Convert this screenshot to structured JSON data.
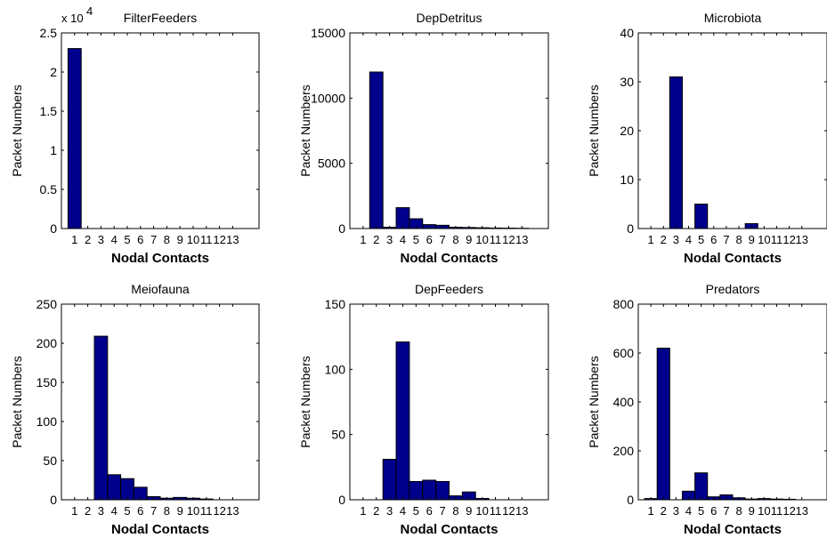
{
  "chart_data": [
    {
      "type": "bar",
      "title": "FilterFeeders",
      "xlabel": "Nodal Contacts",
      "ylabel": "Packet Numbers",
      "categories": [
        "1",
        "2",
        "3",
        "4",
        "5",
        "6",
        "7",
        "8",
        "9",
        "10",
        "11",
        "12",
        "13"
      ],
      "values": [
        23000,
        0,
        0,
        0,
        0,
        0,
        0,
        0,
        0,
        0,
        0,
        0,
        0
      ],
      "ylim": [
        0,
        25000
      ],
      "yticks": [
        0,
        5000,
        10000,
        15000,
        20000,
        25000
      ],
      "ytick_labels": [
        "0",
        "0.5",
        "1",
        "1.5",
        "2",
        "2.5"
      ],
      "multiplier_text": "x 10",
      "multiplier_exp": "4"
    },
    {
      "type": "bar",
      "title": "DepDetritus",
      "xlabel": "Nodal Contacts",
      "ylabel": "Packet Numbers",
      "categories": [
        "1",
        "2",
        "3",
        "4",
        "5",
        "6",
        "7",
        "8",
        "9",
        "10",
        "11",
        "12",
        "13"
      ],
      "values": [
        0,
        12000,
        100,
        1600,
        750,
        300,
        250,
        100,
        80,
        60,
        40,
        30,
        20
      ],
      "ylim": [
        0,
        15000
      ],
      "yticks": [
        0,
        5000,
        10000,
        15000
      ],
      "ytick_labels": [
        "0",
        "5000",
        "10000",
        "15000"
      ]
    },
    {
      "type": "bar",
      "title": "Microbiota",
      "xlabel": "Nodal Contacts",
      "ylabel": "Packet Numbers",
      "categories": [
        "1",
        "2",
        "3",
        "4",
        "5",
        "6",
        "7",
        "8",
        "9",
        "10",
        "11",
        "12",
        "13"
      ],
      "values": [
        0,
        0,
        31,
        0,
        5,
        0,
        0,
        0,
        1,
        0,
        0,
        0,
        0
      ],
      "ylim": [
        0,
        40
      ],
      "yticks": [
        0,
        10,
        20,
        30,
        40
      ],
      "ytick_labels": [
        "0",
        "10",
        "20",
        "30",
        "40"
      ]
    },
    {
      "type": "bar",
      "title": "Meiofauna",
      "xlabel": "Nodal Contacts",
      "ylabel": "Packet Numbers",
      "categories": [
        "1",
        "2",
        "3",
        "4",
        "5",
        "6",
        "7",
        "8",
        "9",
        "10",
        "11",
        "12",
        "13"
      ],
      "values": [
        0,
        0,
        209,
        32,
        27,
        16,
        4,
        2,
        3,
        2,
        1,
        0,
        0
      ],
      "ylim": [
        0,
        250
      ],
      "yticks": [
        0,
        50,
        100,
        150,
        200,
        250
      ],
      "ytick_labels": [
        "0",
        "50",
        "100",
        "150",
        "200",
        "250"
      ]
    },
    {
      "type": "bar",
      "title": "DepFeeders",
      "xlabel": "Nodal Contacts",
      "ylabel": "Packet Numbers",
      "categories": [
        "1",
        "2",
        "3",
        "4",
        "5",
        "6",
        "7",
        "8",
        "9",
        "10",
        "11",
        "12",
        "13"
      ],
      "values": [
        0,
        0,
        31,
        121,
        14,
        15,
        14,
        3,
        6,
        1,
        0,
        0,
        0
      ],
      "ylim": [
        0,
        150
      ],
      "yticks": [
        0,
        50,
        100,
        150
      ],
      "ytick_labels": [
        "0",
        "50",
        "100",
        "150"
      ]
    },
    {
      "type": "bar",
      "title": "Predators",
      "xlabel": "Nodal Contacts",
      "ylabel": "Packet Numbers",
      "categories": [
        "1",
        "2",
        "3",
        "4",
        "5",
        "6",
        "7",
        "8",
        "9",
        "10",
        "11",
        "12",
        "13"
      ],
      "values": [
        5,
        620,
        0,
        35,
        110,
        12,
        20,
        8,
        3,
        5,
        3,
        2,
        0
      ],
      "ylim": [
        0,
        800
      ],
      "yticks": [
        0,
        200,
        400,
        600,
        800
      ],
      "ytick_labels": [
        "0",
        "200",
        "400",
        "600",
        "800"
      ]
    }
  ],
  "colors": {
    "bar_fill": "#00008c",
    "bar_edge": "#000000",
    "axis": "#000000"
  }
}
